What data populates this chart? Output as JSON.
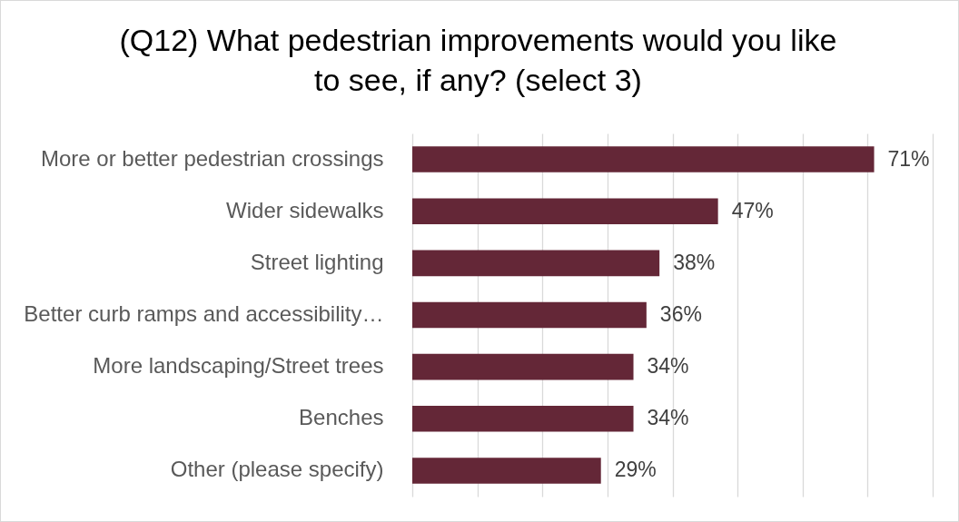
{
  "chart_data": {
    "type": "bar",
    "orientation": "horizontal",
    "title": "(Q12) What pedestrian improvements would you like to see, if any? (select 3)",
    "categories": [
      "More or better pedestrian crossings",
      "Wider sidewalks",
      "Street lighting",
      "Better curb ramps and accessibility…",
      "More landscaping/Street trees",
      "Benches",
      "Other (please specify)"
    ],
    "values": [
      71,
      47,
      38,
      36,
      34,
      34,
      29
    ],
    "value_labels": [
      "71%",
      "47%",
      "38%",
      "36%",
      "34%",
      "34%",
      "29%"
    ],
    "color": "#642737",
    "xlim": [
      0,
      80
    ],
    "xticks": [
      {
        "value": 0,
        "label": null
      },
      {
        "value": 10,
        "label": null
      },
      {
        "value": 20,
        "label": null
      },
      {
        "value": 30,
        "label": null
      },
      {
        "value": 40,
        "label": null
      },
      {
        "value": 50,
        "label": null
      },
      {
        "value": 60,
        "label": null
      },
      {
        "value": 70,
        "label": null
      },
      {
        "value": 80,
        "label": null
      }
    ],
    "grid": "x",
    "tick_labels": "y"
  }
}
